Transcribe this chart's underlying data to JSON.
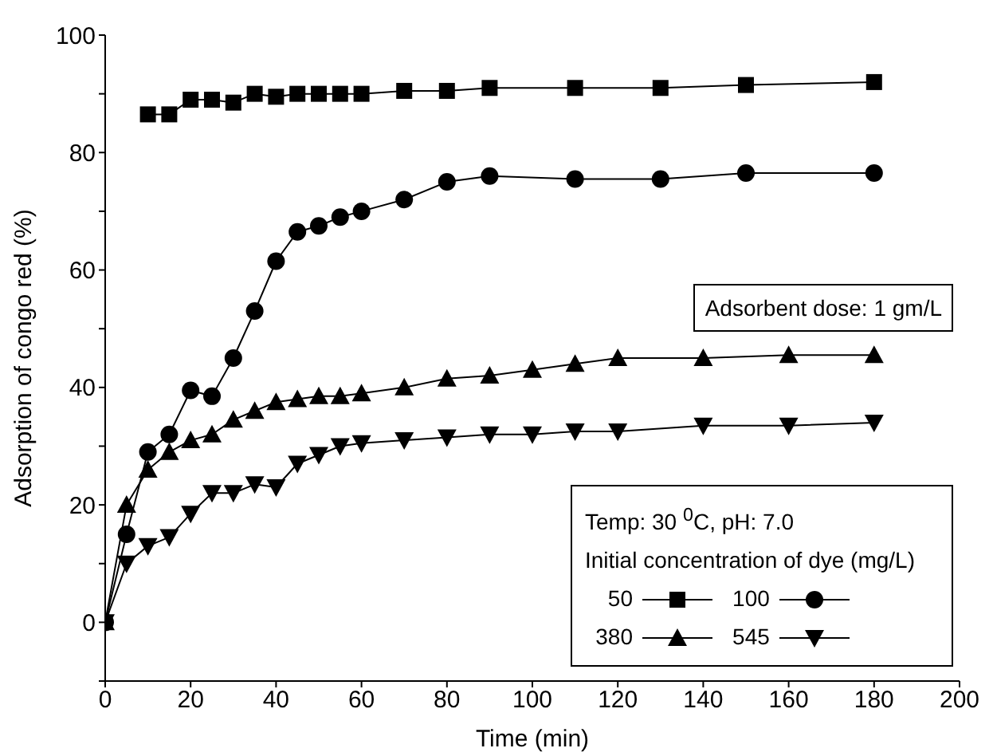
{
  "chart_data": {
    "type": "line",
    "xlabel": "Time (min)",
    "ylabel": "Adsorption of congo red (%)",
    "legend_title": "Initial concentration of dye (mg/L)",
    "legend": "bottom right",
    "annotations": [
      "Adsorbent dose: 1 gm/L",
      "Temp: 30 $^{0}$C, pH: 7.0"
    ],
    "xlim": [
      0,
      200
    ],
    "xticks": [
      0,
      20,
      40,
      60,
      80,
      100,
      120,
      140,
      160,
      180,
      200
    ],
    "ylim": [
      -10,
      100
    ],
    "yticks": [
      {
        "value": -10,
        "label": null
      },
      0,
      {
        "value": 10,
        "label": null
      },
      20,
      {
        "value": 30,
        "label": null
      },
      40,
      {
        "value": 50,
        "label": null
      },
      60,
      {
        "value": 70,
        "label": null
      },
      80,
      {
        "value": 90,
        "label": null
      },
      100
    ],
    "grid": false,
    "series": [
      {
        "name": "50",
        "color": "#000000",
        "marker": "square",
        "x": [
          10,
          15,
          20,
          25,
          30,
          35,
          40,
          45,
          50,
          55,
          60,
          70,
          80,
          90,
          110,
          130,
          150,
          180
        ],
        "values": [
          86.5,
          86.5,
          89,
          89,
          88.5,
          90,
          89.5,
          90,
          90,
          90,
          90,
          90.5,
          90.5,
          91,
          91,
          91,
          91.5,
          92
        ]
      },
      {
        "name": "100",
        "color": "#000000",
        "marker": "circle",
        "x": [
          0,
          5,
          10,
          15,
          20,
          25,
          30,
          35,
          40,
          45,
          50,
          55,
          60,
          70,
          80,
          90,
          110,
          130,
          150,
          180
        ],
        "values": [
          0,
          15,
          29,
          32,
          39.5,
          38.5,
          45,
          53,
          61.5,
          66.5,
          67.5,
          69,
          70,
          72,
          75,
          76,
          75.5,
          75.5,
          76.5,
          76.5
        ]
      },
      {
        "name": "380",
        "color": "#000000",
        "marker": "triangle",
        "x": [
          0,
          5,
          10,
          15,
          20,
          25,
          30,
          35,
          40,
          45,
          50,
          55,
          60,
          70,
          80,
          90,
          100,
          110,
          120,
          140,
          160,
          180
        ],
        "values": [
          0,
          20,
          26,
          29,
          31,
          32,
          34.5,
          36,
          37.5,
          38,
          38.5,
          38.5,
          39,
          40,
          41.5,
          42,
          43,
          44,
          45,
          45,
          45.5,
          45.5
        ]
      },
      {
        "name": "545",
        "color": "#000000",
        "marker": "triangle-down",
        "x": [
          0,
          5,
          10,
          15,
          20,
          25,
          30,
          35,
          40,
          45,
          50,
          55,
          60,
          70,
          80,
          90,
          100,
          110,
          120,
          140,
          160,
          180
        ],
        "values": [
          0,
          10,
          13,
          14.5,
          18.5,
          22,
          22,
          23.5,
          23,
          27,
          28.5,
          30,
          30.5,
          31,
          31.5,
          32,
          32,
          32.5,
          32.5,
          33.5,
          33.5,
          34
        ]
      }
    ]
  }
}
